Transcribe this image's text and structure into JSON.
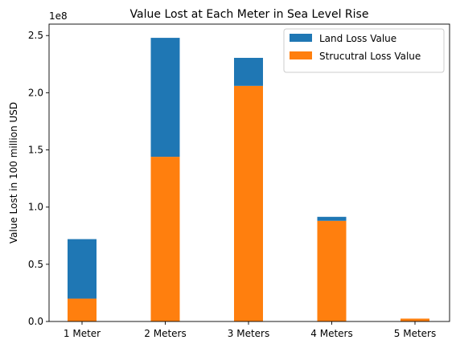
{
  "chart_data": {
    "type": "bar",
    "stacked": true,
    "title": "Value Lost at Each Meter in Sea Level Rise",
    "xlabel": "",
    "ylabel": "Value Lost in 100 million USD",
    "y_offset_label": "1e8",
    "categories": [
      "1 Meter",
      "2 Meters",
      "3 Meters",
      "4 Meters",
      "5 Meters"
    ],
    "series": [
      {
        "name": "Strucutral Loss Value",
        "values": [
          20000000,
          144000000,
          206000000,
          88000000,
          2500000
        ],
        "color": "#ff7f0e"
      },
      {
        "name": "Land Loss Value",
        "values": [
          52000000,
          104000000,
          24500000,
          3500000,
          0
        ],
        "color": "#1f77b4"
      }
    ],
    "ylim": [
      0,
      260000000
    ],
    "yticks": [
      0,
      50000000,
      100000000,
      150000000,
      200000000,
      250000000
    ],
    "ytick_labels": [
      "0.0",
      "0.5",
      "1.0",
      "1.5",
      "2.0",
      "2.5"
    ],
    "legend": {
      "placement": "top-right",
      "entries": [
        {
          "label": "Land Loss Value",
          "color": "#1f77b4"
        },
        {
          "label": "Strucutral Loss Value",
          "color": "#ff7f0e"
        }
      ]
    },
    "grid": false
  }
}
